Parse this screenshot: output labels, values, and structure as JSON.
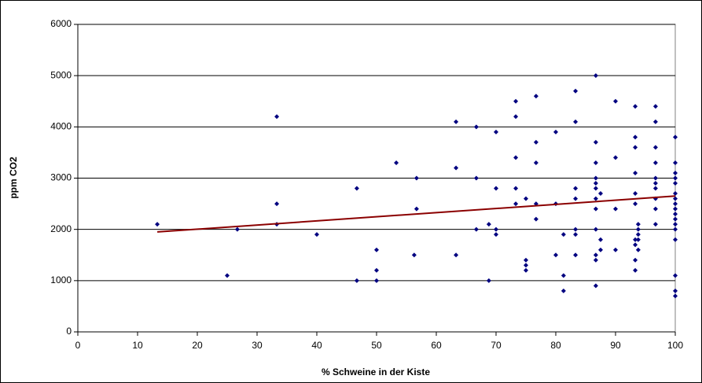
{
  "chart_data": {
    "type": "scatter",
    "x_label": "% Schweine in der Kiste",
    "y_label": "ppm CO2",
    "x": [
      13.3,
      25,
      26.7,
      33.3,
      33.3,
      33.3,
      40,
      46.7,
      46.7,
      50,
      50,
      50,
      53.3,
      56.7,
      56.7,
      56.3,
      63.3,
      63.3,
      63.3,
      66.7,
      66.7,
      66.7,
      68.8,
      68.8,
      70,
      70,
      70,
      70,
      73.3,
      73.3,
      73.3,
      73.3,
      73.3,
      75,
      75,
      75,
      75,
      76.7,
      76.7,
      76.7,
      76.7,
      76.7,
      80,
      80,
      80,
      81.3,
      81.3,
      81.3,
      83.3,
      83.3,
      83.3,
      83.3,
      83.3,
      83.3,
      83.3,
      86.7,
      86.7,
      86.7,
      86.7,
      86.7,
      86.7,
      86.7,
      86.7,
      86.7,
      86.7,
      86.7,
      86.7,
      87.5,
      87.5,
      87.5,
      90,
      90,
      90,
      90,
      93.3,
      93.3,
      93.3,
      93.3,
      93.3,
      93.3,
      93.3,
      93.3,
      93.3,
      93.3,
      93.8,
      93.8,
      93.8,
      93.8,
      93.8,
      96.7,
      96.7,
      96.7,
      96.7,
      96.7,
      96.7,
      96.7,
      96.7,
      96.7,
      96.7,
      100,
      100,
      100,
      100,
      100,
      100,
      100,
      100,
      100,
      100,
      100,
      100,
      100,
      100,
      100,
      100,
      100
    ],
    "series": [
      {
        "color": "#000080",
        "values": [
          2100,
          1100,
          2000,
          4200,
          2500,
          2100,
          1900,
          2800,
          1000,
          1600,
          1200,
          1000,
          3300,
          3000,
          2400,
          1500,
          4100,
          3200,
          1500,
          4000,
          3000,
          2000,
          2100,
          1000,
          3900,
          2800,
          2000,
          1900,
          4500,
          4200,
          3400,
          2800,
          2500,
          2600,
          1400,
          1300,
          1200,
          4600,
          3700,
          3300,
          2500,
          2200,
          3900,
          2500,
          1500,
          1900,
          1100,
          800,
          4700,
          4100,
          2800,
          2600,
          2000,
          1900,
          1500,
          5000,
          3700,
          3300,
          3000,
          2900,
          2800,
          2600,
          2400,
          2000,
          1500,
          1400,
          900,
          2700,
          1800,
          1600,
          4500,
          3400,
          2400,
          1600,
          4400,
          3800,
          3600,
          3100,
          2700,
          2500,
          1800,
          1700,
          1400,
          1200,
          2100,
          2000,
          1900,
          1800,
          1600,
          4400,
          4100,
          3600,
          3300,
          3000,
          2900,
          2800,
          2600,
          2400,
          2100,
          3800,
          3300,
          3100,
          3000,
          2900,
          2700,
          2600,
          2500,
          2400,
          2300,
          2200,
          2100,
          2000,
          1800,
          1100,
          800,
          700
        ]
      }
    ],
    "trendline": {
      "x": [
        13.3,
        100
      ],
      "values": [
        1950,
        2650
      ],
      "color": "#8b0000"
    },
    "xlim": [
      0,
      100
    ],
    "xticks": [
      0,
      10,
      20,
      30,
      40,
      50,
      60,
      70,
      80,
      90,
      100
    ],
    "ylim": [
      0,
      6000
    ],
    "yticks": [
      0,
      1000,
      2000,
      3000,
      4000,
      5000,
      6000
    ],
    "grid": true
  }
}
